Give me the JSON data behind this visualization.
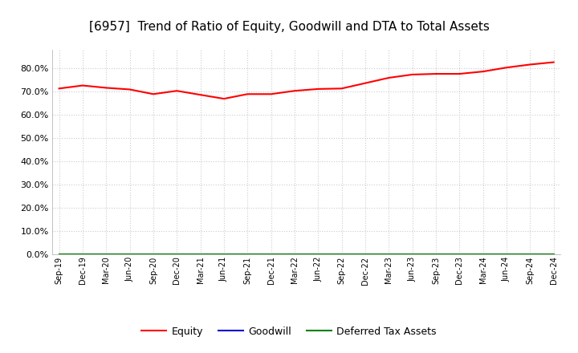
{
  "title": "[6957]  Trend of Ratio of Equity, Goodwill and DTA to Total Assets",
  "x_labels": [
    "Sep-19",
    "Dec-19",
    "Mar-20",
    "Jun-20",
    "Sep-20",
    "Dec-20",
    "Mar-21",
    "Jun-21",
    "Sep-21",
    "Dec-21",
    "Mar-22",
    "Jun-22",
    "Sep-22",
    "Dec-22",
    "Mar-23",
    "Jun-23",
    "Sep-23",
    "Dec-23",
    "Mar-24",
    "Jun-24",
    "Sep-24",
    "Dec-24"
  ],
  "equity": [
    71.2,
    72.5,
    71.5,
    70.8,
    68.8,
    70.2,
    68.5,
    66.8,
    68.8,
    68.8,
    70.2,
    71.0,
    71.2,
    73.5,
    75.8,
    77.2,
    77.5,
    77.5,
    78.5,
    80.2,
    81.5,
    82.5
  ],
  "goodwill": [
    0.0,
    0.0,
    0.0,
    0.0,
    0.0,
    0.0,
    0.0,
    0.0,
    0.0,
    0.0,
    0.0,
    0.0,
    0.0,
    0.0,
    0.0,
    0.0,
    0.0,
    0.0,
    0.0,
    0.0,
    0.0,
    0.0
  ],
  "dta": [
    0.0,
    0.0,
    0.0,
    0.0,
    0.0,
    0.0,
    0.0,
    0.0,
    0.0,
    0.0,
    0.0,
    0.0,
    0.0,
    0.0,
    0.0,
    0.0,
    0.0,
    0.0,
    0.0,
    0.0,
    0.0,
    0.0
  ],
  "equity_color": "#ff0000",
  "goodwill_color": "#0000cc",
  "dta_color": "#008000",
  "ylim": [
    0.0,
    88.0
  ],
  "yticks": [
    0.0,
    10.0,
    20.0,
    30.0,
    40.0,
    50.0,
    60.0,
    70.0,
    80.0
  ],
  "background_color": "#ffffff",
  "plot_bg_color": "#ffffff",
  "grid_color": "#cccccc",
  "title_fontsize": 11,
  "legend_labels": [
    "Equity",
    "Goodwill",
    "Deferred Tax Assets"
  ]
}
